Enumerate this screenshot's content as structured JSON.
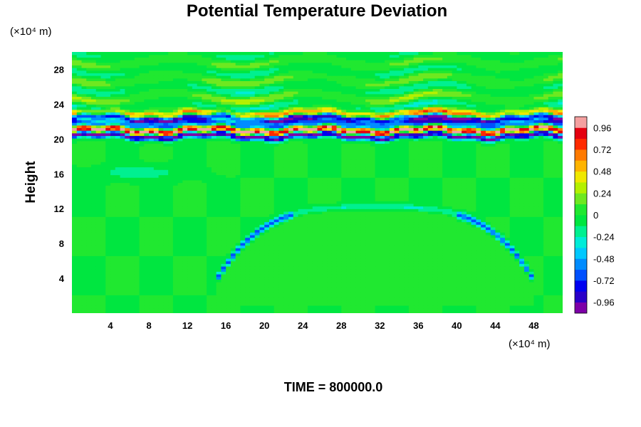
{
  "chart_data": {
    "type": "heatmap",
    "title": "Potential Temperature Deviation",
    "ylabel": "Height",
    "xlabel": "",
    "x_unit": "(×10⁴ m)",
    "y_unit": "(×10⁴ m)",
    "footer": "TIME = 800000.0",
    "xlim": [
      0,
      51
    ],
    "ylim": [
      0,
      30
    ],
    "x_ticks": [
      4,
      8,
      12,
      16,
      20,
      24,
      28,
      32,
      36,
      40,
      44,
      48
    ],
    "y_ticks": [
      4,
      8,
      12,
      16,
      20,
      24,
      28
    ],
    "colorbar": {
      "min": -1.08,
      "max": 1.08,
      "ticks": [
        "0.96",
        "0.72",
        "0.48",
        "0.24",
        "0",
        "-0.24",
        "-0.48",
        "-0.72",
        "-0.96"
      ],
      "tick_values": [
        0.96,
        0.72,
        0.48,
        0.24,
        0,
        -0.24,
        -0.48,
        -0.72,
        -0.96
      ]
    },
    "field_description": {
      "background_value": 0.0,
      "bands": [
        {
          "y": 20.4,
          "value": -1.08
        },
        {
          "y": 21.0,
          "value": 1.08
        },
        {
          "y": 21.7,
          "value": -0.6
        },
        {
          "y": 22.4,
          "value": -0.96
        },
        {
          "y": 23.0,
          "value": 0.5
        }
      ],
      "wave_region": [
        22,
        30
      ],
      "arc": {
        "x_range": [
          16,
          47
        ],
        "y_peak": 12.2,
        "value": -0.7
      }
    }
  }
}
